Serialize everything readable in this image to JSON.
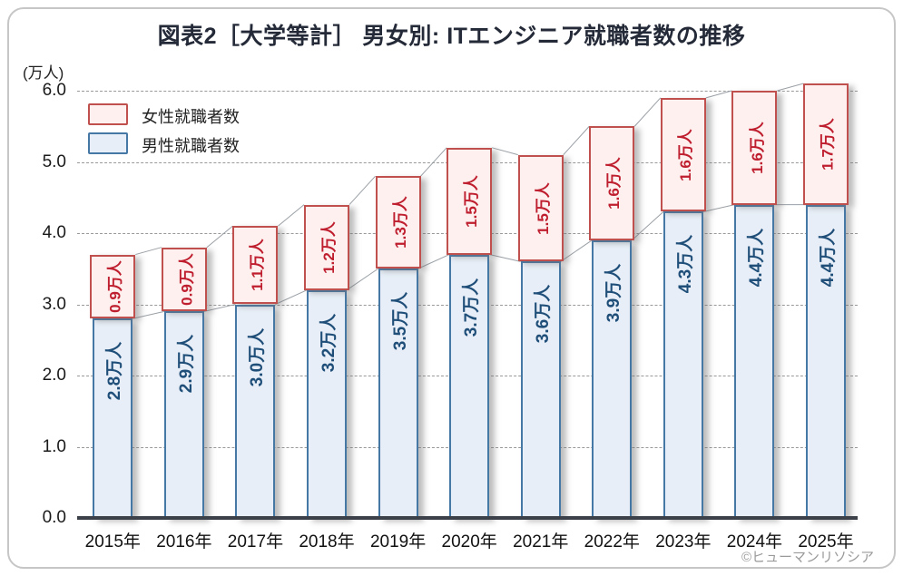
{
  "title": "図表2［大学等計］ 男女別: ITエンジニア就職者数の推移",
  "y_axis": {
    "unit_label": "(万人)",
    "ticks": [
      "0.0",
      "1.0",
      "2.0",
      "3.0",
      "4.0",
      "5.0",
      "6.0"
    ]
  },
  "legend": {
    "items": [
      {
        "label": "女性就職者数",
        "fill": "#fdf0ef",
        "border": "#c0504d"
      },
      {
        "label": "男性就職者数",
        "fill": "#e7eef7",
        "border": "#4678a6"
      }
    ]
  },
  "chart_data": {
    "type": "bar",
    "stacked": true,
    "categories": [
      "2015年",
      "2016年",
      "2017年",
      "2018年",
      "2019年",
      "2020年",
      "2021年",
      "2022年",
      "2023年",
      "2024年",
      "2025年"
    ],
    "series": [
      {
        "name": "男性就職者数",
        "values": [
          2.8,
          2.9,
          3.0,
          3.2,
          3.5,
          3.7,
          3.6,
          3.9,
          4.3,
          4.4,
          4.4
        ]
      },
      {
        "name": "女性就職者数",
        "values": [
          0.9,
          0.9,
          1.1,
          1.2,
          1.3,
          1.5,
          1.5,
          1.6,
          1.6,
          1.6,
          1.7
        ]
      }
    ],
    "value_suffix": "万人",
    "title": "図表2［大学等計］ 男女別: ITエンジニア就職者数の推移",
    "ylabel": "(万人)",
    "ylim": [
      0,
      6
    ],
    "grid": true,
    "legend_position": "top-left"
  },
  "colors": {
    "male_fill": "#e7eef7",
    "male_border": "#4678a6",
    "male_text": "#1f4e79",
    "female_fill": "#fdf0ef",
    "female_border": "#c0504d",
    "female_text": "#bf1e2e",
    "grid": "#999999",
    "axis": "#3c4049",
    "connector": "#9aa0a6"
  },
  "copyright": "©ヒューマンリソシア"
}
